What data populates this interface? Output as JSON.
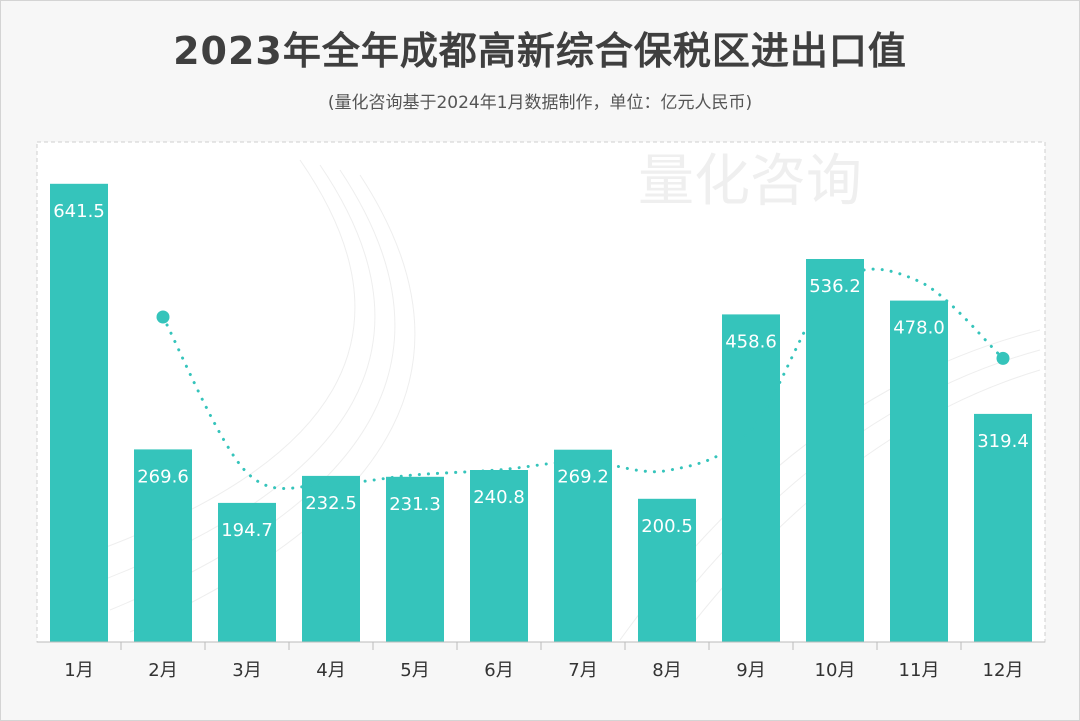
{
  "title": "2023年全年成都高新综合保税区进出口值",
  "subtitle": "(量化咨询基于2024年1月数据制作，单位：亿元人民币)",
  "watermark": "量化咨询",
  "colors": {
    "bar": "#35c4bb",
    "bar_label": "#ffffff",
    "trend": "#35c4bb",
    "axis_text": "#333333",
    "plot_bg": "#ffffff"
  },
  "chart_data": {
    "type": "bar",
    "categories": [
      "1月",
      "2月",
      "3月",
      "4月",
      "5月",
      "6月",
      "7月",
      "8月",
      "9月",
      "10月",
      "11月",
      "12月"
    ],
    "values": [
      641.5,
      269.6,
      194.7,
      232.5,
      231.3,
      240.8,
      269.2,
      200.5,
      458.6,
      536.2,
      478.0,
      319.4
    ],
    "value_labels": [
      "641.5",
      "269.6",
      "194.7",
      "232.5",
      "231.3",
      "240.8",
      "269.2",
      "200.5",
      "458.6",
      "536.2",
      "478.0",
      "319.4"
    ],
    "ylim": [
      0,
      700
    ],
    "trend": {
      "style": "dotted",
      "x": [
        "2月",
        "3月",
        "4月",
        "5月",
        "6月",
        "7月",
        "8月",
        "9月",
        "10月",
        "11月",
        "12月"
      ],
      "values": [
        455,
        237,
        222,
        234,
        241,
        253,
        240,
        297,
        500,
        505,
        397
      ]
    },
    "grid": false,
    "legend": "none"
  }
}
